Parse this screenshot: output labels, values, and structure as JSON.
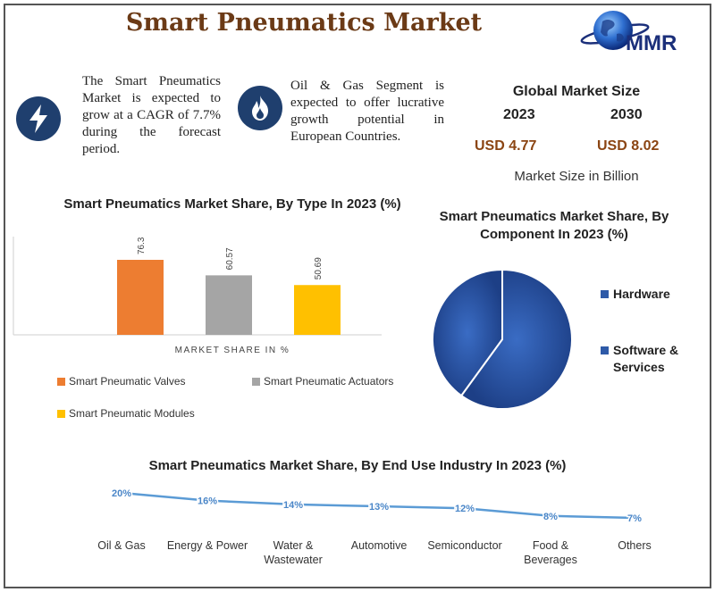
{
  "header": {
    "title": "Smart Pneumatics Market",
    "logo_text": "MMR"
  },
  "highlights": [
    {
      "icon": "lightning-bolt-icon",
      "text": "The Smart Pneumatics Market is expected to grow at a CAGR of 7.7% during the forecast period."
    },
    {
      "icon": "flame-icon",
      "text": "Oil & Gas Segment is expected to offer lucrative growth potential in European Countries."
    }
  ],
  "global_market": {
    "title": "Global Market Size",
    "year_start": "2023",
    "year_end": "2030",
    "value_start": "USD 4.77",
    "value_end": "USD 8.02",
    "note": "Market Size in Billion"
  },
  "colors": {
    "valves": "#ed7d31",
    "actuators": "#a5a5a5",
    "modules": "#ffc000",
    "pie": "#2e5aa8",
    "line": "#5b9bd5",
    "title": "#6b3a16"
  },
  "chart_data": [
    {
      "type": "bar",
      "title": "Smart Pneumatics Market Share, By Type In 2023 (%)",
      "xlabel": "MARKET SHARE IN %",
      "series": [
        {
          "name": "Smart Pneumatic Valves",
          "value": 76.36,
          "label": "76.36"
        },
        {
          "name": "Smart Pneumatic Actuators",
          "value": 60.57,
          "label": "60.57"
        },
        {
          "name": "Smart Pneumatic Modules",
          "value": 50.69,
          "label": "50.69"
        }
      ],
      "ylim": [
        0,
        100
      ]
    },
    {
      "type": "pie",
      "title": "Smart Pneumatics Market Share, By Component In 2023 (%)",
      "slices": [
        {
          "name": "Hardware",
          "value": 60
        },
        {
          "name": "Software & Services",
          "value": 40
        }
      ]
    },
    {
      "type": "line",
      "title": "Smart Pneumatics Market Share, By End Use Industry In 2023 (%)",
      "categories": [
        "Oil & Gas",
        "Energy & Power",
        "Water & Wastewater",
        "Automotive",
        "Semiconductor",
        "Food & Beverages",
        "Others"
      ],
      "values": [
        20,
        16,
        14,
        13,
        12,
        8,
        7
      ],
      "labels": [
        "20%",
        "16%",
        "14%",
        "13%",
        "12%",
        "8%",
        "7%"
      ]
    }
  ]
}
